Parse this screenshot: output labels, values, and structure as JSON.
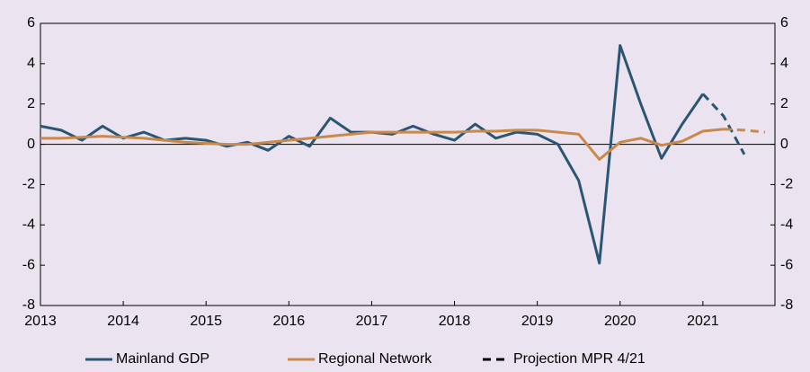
{
  "chart_data": {
    "type": "line",
    "x": [
      2013.0,
      2013.25,
      2013.5,
      2013.75,
      2014.0,
      2014.25,
      2014.5,
      2014.75,
      2015.0,
      2015.25,
      2015.5,
      2015.75,
      2016.0,
      2016.25,
      2016.5,
      2016.75,
      2017.0,
      2017.25,
      2017.5,
      2017.75,
      2018.0,
      2018.25,
      2018.5,
      2018.75,
      2019.0,
      2019.25,
      2019.5,
      2019.75,
      2020.0,
      2020.25,
      2020.5,
      2020.75,
      2021.0,
      2021.25,
      2021.5,
      2021.75
    ],
    "series": [
      {
        "name": "Mainland GDP",
        "color": "#2b5673",
        "values": [
          0.9,
          0.7,
          0.2,
          0.9,
          0.3,
          0.6,
          0.2,
          0.3,
          0.2,
          -0.1,
          0.1,
          -0.3,
          0.4,
          -0.1,
          1.3,
          0.6,
          0.6,
          0.5,
          0.9,
          0.5,
          0.2,
          1.0,
          0.3,
          0.6,
          0.5,
          0.0,
          -1.8,
          -5.9,
          4.9,
          2.0,
          -0.7,
          1.0,
          2.5,
          null,
          null,
          null
        ],
        "projection": [
          null,
          null,
          null,
          null,
          null,
          null,
          null,
          null,
          null,
          null,
          null,
          null,
          null,
          null,
          null,
          null,
          null,
          null,
          null,
          null,
          null,
          null,
          null,
          null,
          null,
          null,
          null,
          null,
          null,
          null,
          null,
          null,
          2.5,
          1.4,
          -0.5,
          null
        ]
      },
      {
        "name": "Regional Network",
        "color": "#c8894a",
        "values": [
          0.3,
          0.3,
          0.35,
          0.4,
          0.35,
          0.3,
          0.2,
          0.1,
          0.05,
          0.0,
          0.0,
          0.1,
          0.2,
          0.3,
          0.4,
          0.5,
          0.6,
          0.6,
          0.6,
          0.6,
          0.6,
          0.65,
          0.65,
          0.7,
          0.7,
          0.6,
          0.5,
          -0.75,
          0.1,
          0.3,
          -0.05,
          0.15,
          0.65,
          0.75,
          null,
          null
        ],
        "projection": [
          null,
          null,
          null,
          null,
          null,
          null,
          null,
          null,
          null,
          null,
          null,
          null,
          null,
          null,
          null,
          null,
          null,
          null,
          null,
          null,
          null,
          null,
          null,
          null,
          null,
          null,
          null,
          null,
          null,
          null,
          null,
          null,
          null,
          0.75,
          0.7,
          0.6
        ]
      }
    ],
    "projection_legend": {
      "name": "Projection MPR 4/21",
      "color": "#000000"
    },
    "xlim": [
      2013,
      2021.87
    ],
    "xticks": [
      2013,
      2014,
      2015,
      2016,
      2017,
      2018,
      2019,
      2020,
      2021
    ],
    "ylim": [
      -8,
      6
    ],
    "yticks": [
      -8,
      -6,
      -4,
      -2,
      0,
      2,
      4,
      6
    ],
    "y2lim": [
      -8,
      6
    ],
    "y2ticks": [
      -8,
      -6,
      -4,
      -2,
      0,
      2,
      4,
      6
    ]
  }
}
